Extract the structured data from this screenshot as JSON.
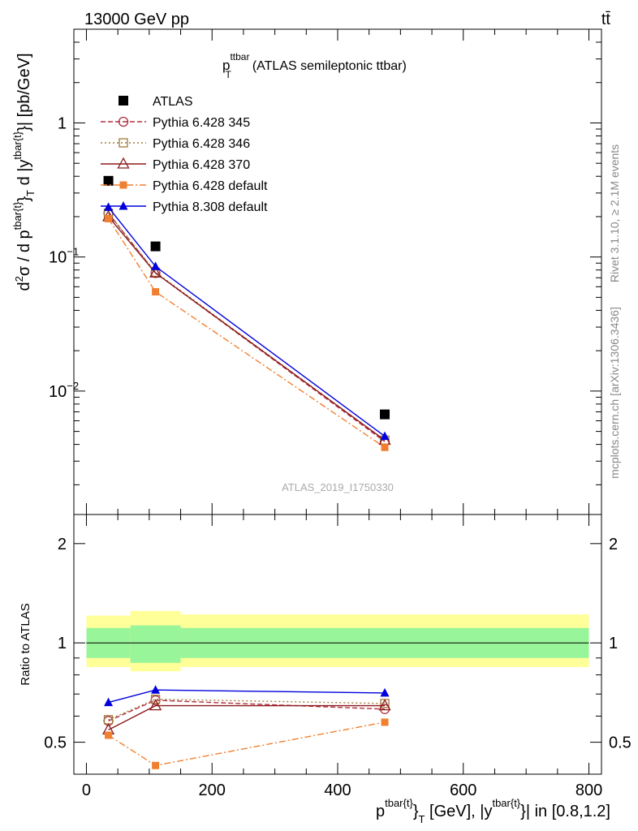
{
  "header": {
    "energy_label": "13000 GeV pp",
    "process_label": "tt̄"
  },
  "side_text": {
    "rivet": "Rivet 3.1.10, ≥ 2.1M events",
    "mcplots": "mcplots.cern.ch [arXiv:1306.3436]"
  },
  "colors": {
    "atlas": "#000000",
    "p345": "#b03040",
    "p346": "#a07a3c",
    "p370": "#8b1a1a",
    "p6def": "#f08030",
    "p8def": "#0000dd",
    "band_inner": "#99f599",
    "band_outer": "#ffff99"
  },
  "chart_data": [
    {
      "type": "line",
      "title_main": "p",
      "title_sup": "ttbar",
      "title_sub": "T",
      "title_rest": "(ATLAS semileptonic ttbar)",
      "ylabel": "d²σ / d p^{tbar{t}}_T d |y^{tbar{t}}| [pb/GeV]",
      "ylabel_parts": {
        "a": "d",
        "a_sup": "2",
        "b": "σ / d p",
        "b_sup": "tbar{t}",
        "c": "}",
        "c_sub": "T",
        "d": " d |y",
        "d_sup": "tbar{t}",
        "e": "}| [pb/GeV]"
      },
      "y_scale": "log",
      "ylim": [
        0.0012,
        5
      ],
      "xlim": [
        -20,
        820
      ],
      "ytick_labels": [
        {
          "label": "1",
          "value": 1,
          "exp": ""
        },
        {
          "label": "10",
          "value": 0.1,
          "exp": "−1"
        },
        {
          "label": "10",
          "value": 0.01,
          "exp": "−2"
        }
      ],
      "watermark": "ATLAS_2019_I1750330",
      "legend_position": "top-left",
      "x": [
        35,
        110,
        475
      ],
      "series": [
        {
          "key": "atlas",
          "name": "ATLAS",
          "values": [
            0.37,
            0.12,
            0.0067
          ]
        },
        {
          "key": "p345",
          "name": "Pythia 6.428 345",
          "values": [
            0.212,
            0.076,
            0.0042
          ]
        },
        {
          "key": "p346",
          "name": "Pythia 6.428 346",
          "values": [
            0.212,
            0.077,
            0.0043
          ]
        },
        {
          "key": "p370",
          "name": "Pythia 6.428 370",
          "values": [
            0.2,
            0.076,
            0.0043
          ]
        },
        {
          "key": "p6def",
          "name": "Pythia 6.428 default",
          "values": [
            0.193,
            0.055,
            0.0038
          ]
        },
        {
          "key": "p8def",
          "name": "Pythia 8.308 default",
          "values": [
            0.235,
            0.085,
            0.0046
          ]
        }
      ]
    },
    {
      "type": "line",
      "ylabel": "Ratio to ATLAS",
      "xlabel": "p^{tbar{t}}_T [GeV], |y^{tbar{t}}| in [0.8,1.2]",
      "xlabel_parts": {
        "a": "p",
        "a_sup": "tbar{t}",
        "b": "}",
        "b_sub": "T",
        "c": " [GeV], |y",
        "c_sup": "tbar{t}",
        "d": "}| in [0.8,1.2]"
      },
      "y_scale": "log",
      "ylim": [
        0.4,
        2.45
      ],
      "xlim": [
        -20,
        820
      ],
      "xtick_labels": [
        {
          "label": "0",
          "value": 0
        },
        {
          "label": "200",
          "value": 200
        },
        {
          "label": "400",
          "value": 400
        },
        {
          "label": "600",
          "value": 600
        },
        {
          "label": "800",
          "value": 800
        }
      ],
      "ytick_labels": [
        {
          "label": "0.5",
          "value": 0.5
        },
        {
          "label": "1",
          "value": 1
        },
        {
          "label": "2",
          "value": 2
        }
      ],
      "bands": [
        {
          "x0": 0,
          "x1": 70,
          "inner": [
            0.9,
            1.11
          ],
          "outer": [
            0.845,
            1.21
          ]
        },
        {
          "x0": 70,
          "x1": 150,
          "inner": [
            0.87,
            1.13
          ],
          "outer": [
            0.82,
            1.25
          ]
        },
        {
          "x0": 150,
          "x1": 800,
          "inner": [
            0.9,
            1.11
          ],
          "outer": [
            0.845,
            1.22
          ]
        }
      ],
      "x": [
        35,
        110,
        475
      ],
      "series": [
        {
          "key": "p345",
          "name": "Pythia 6.428 345",
          "values": [
            0.58,
            0.67,
            0.63
          ]
        },
        {
          "key": "p346",
          "name": "Pythia 6.428 346",
          "values": [
            0.585,
            0.675,
            0.655
          ]
        },
        {
          "key": "p370",
          "name": "Pythia 6.428 370",
          "values": [
            0.545,
            0.645,
            0.645
          ]
        },
        {
          "key": "p6def",
          "name": "Pythia 6.428 default",
          "values": [
            0.525,
            0.425,
            0.575
          ]
        },
        {
          "key": "p8def",
          "name": "Pythia 8.308 default",
          "values": [
            0.66,
            0.72,
            0.705
          ]
        }
      ]
    }
  ]
}
